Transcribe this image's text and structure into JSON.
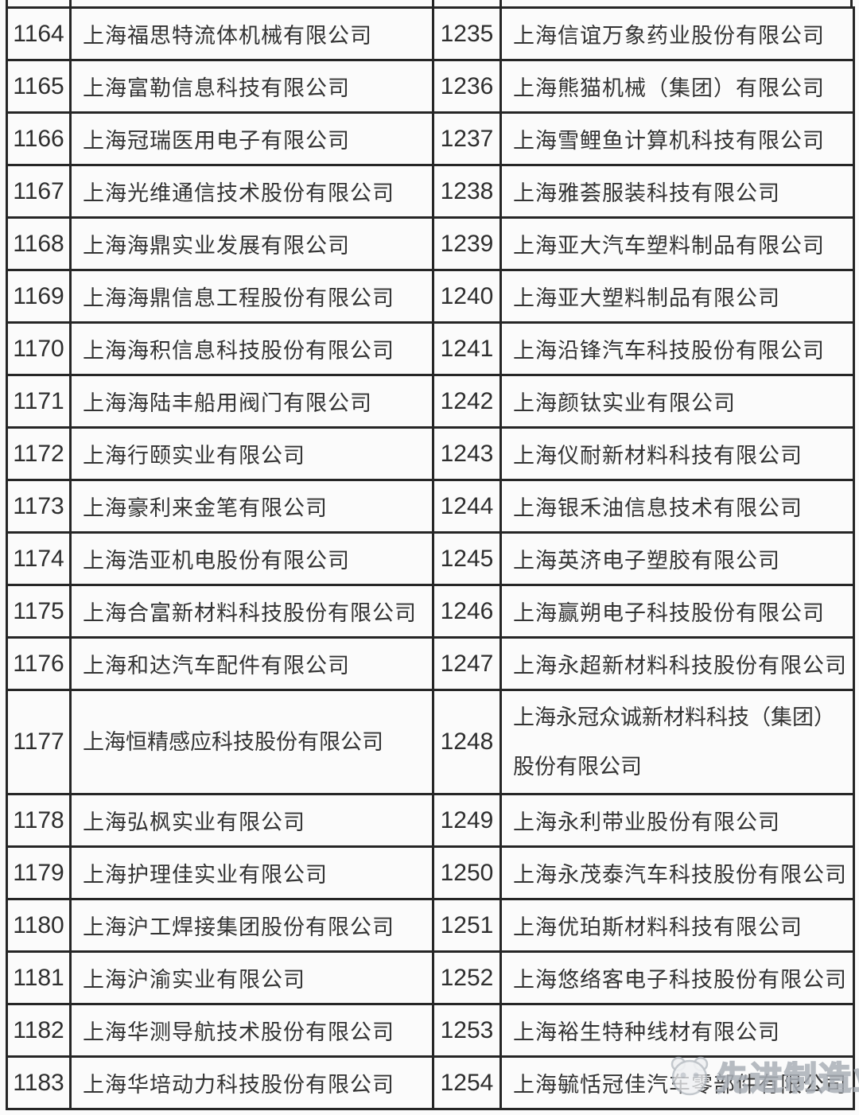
{
  "colors": {
    "background": "#fbfbfb",
    "gridline": "#262626",
    "text": "#333333",
    "watermark": "#aab0b8"
  },
  "table": {
    "rows": [
      {
        "left_no": "1164",
        "left_name": "上海福思特流体机械有限公司",
        "right_no": "1235",
        "right_name": "上海信谊万象药业股份有限公司"
      },
      {
        "left_no": "1165",
        "left_name": "上海富勒信息科技有限公司",
        "right_no": "1236",
        "right_name": "上海熊猫机械（集团）有限公司"
      },
      {
        "left_no": "1166",
        "left_name": "上海冠瑞医用电子有限公司",
        "right_no": "1237",
        "right_name": "上海雪鲤鱼计算机科技有限公司"
      },
      {
        "left_no": "1167",
        "left_name": "上海光维通信技术股份有限公司",
        "right_no": "1238",
        "right_name": "上海雅荟服装科技有限公司"
      },
      {
        "left_no": "1168",
        "left_name": "上海海鼎实业发展有限公司",
        "right_no": "1239",
        "right_name": "上海亚大汽车塑料制品有限公司"
      },
      {
        "left_no": "1169",
        "left_name": "上海海鼎信息工程股份有限公司",
        "right_no": "1240",
        "right_name": "上海亚大塑料制品有限公司"
      },
      {
        "left_no": "1170",
        "left_name": "上海海积信息科技股份有限公司",
        "right_no": "1241",
        "right_name": "上海沿锋汽车科技股份有限公司"
      },
      {
        "left_no": "1171",
        "left_name": "上海海陆丰船用阀门有限公司",
        "right_no": "1242",
        "right_name": "上海颜钛实业有限公司"
      },
      {
        "left_no": "1172",
        "left_name": "上海行颐实业有限公司",
        "right_no": "1243",
        "right_name": "上海仪耐新材料科技有限公司"
      },
      {
        "left_no": "1173",
        "left_name": "上海豪利来金笔有限公司",
        "right_no": "1244",
        "right_name": "上海银禾油信息技术有限公司"
      },
      {
        "left_no": "1174",
        "left_name": "上海浩亚机电股份有限公司",
        "right_no": "1245",
        "right_name": "上海英济电子塑胶有限公司"
      },
      {
        "left_no": "1175",
        "left_name": "上海合富新材料科技股份有限公司",
        "right_no": "1246",
        "right_name": "上海赢朔电子科技股份有限公司"
      },
      {
        "left_no": "1176",
        "left_name": "上海和达汽车配件有限公司",
        "right_no": "1247",
        "right_name": "上海永超新材料科技股份有限公司"
      },
      {
        "left_no": "1177",
        "left_name": "上海恒精感应科技股份有限公司",
        "right_no": "1248",
        "right_name": "上海永冠众诚新材料科技（集团）股份有限公司",
        "tall": true
      },
      {
        "left_no": "1178",
        "left_name": "上海弘枫实业有限公司",
        "right_no": "1249",
        "right_name": "上海永利带业股份有限公司"
      },
      {
        "left_no": "1179",
        "left_name": "上海护理佳实业有限公司",
        "right_no": "1250",
        "right_name": "上海永茂泰汽车科技股份有限公司"
      },
      {
        "left_no": "1180",
        "left_name": "上海沪工焊接集团股份有限公司",
        "right_no": "1251",
        "right_name": "上海优珀斯材料科技有限公司"
      },
      {
        "left_no": "1181",
        "left_name": "上海沪渝实业有限公司",
        "right_no": "1252",
        "right_name": "上海悠络客电子科技股份有限公司"
      },
      {
        "left_no": "1182",
        "left_name": "上海华测导航技术股份有限公司",
        "right_no": "1253",
        "right_name": "上海裕生特种线材有限公司"
      },
      {
        "left_no": "1183",
        "left_name": "上海华培动力科技股份有限公司",
        "right_no": "1254",
        "right_name": "上海毓恬冠佳汽车零部件有限公司"
      }
    ]
  },
  "watermark": {
    "text": "先进制造业",
    "icon": "panda-logo-icon"
  }
}
